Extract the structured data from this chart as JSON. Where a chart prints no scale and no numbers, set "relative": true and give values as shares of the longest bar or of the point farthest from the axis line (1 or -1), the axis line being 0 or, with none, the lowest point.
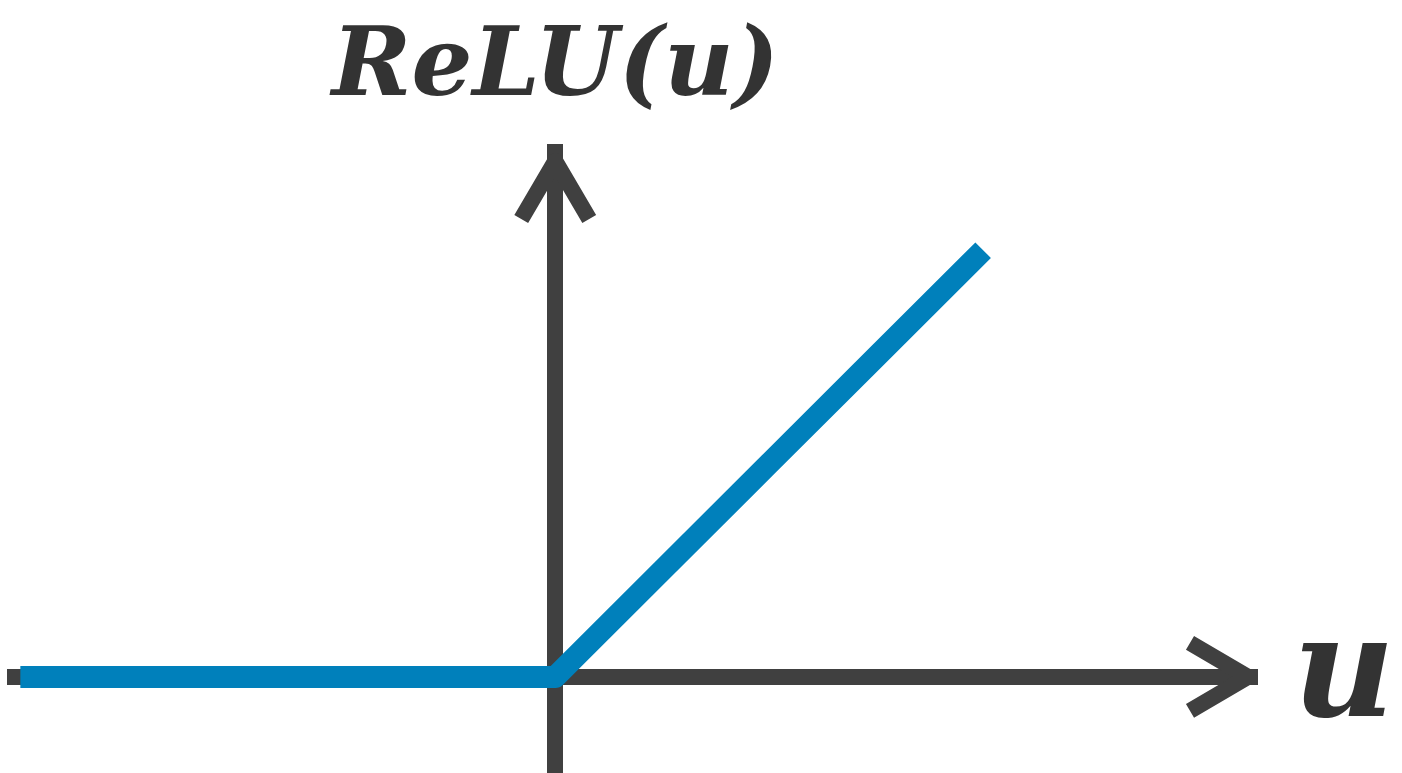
{
  "chart_data": {
    "type": "line",
    "xlabel": "u",
    "ylabel": "ReLU(u)",
    "categories": [
      null,
      null,
      null,
      null,
      null,
      null,
      null,
      null,
      null,
      null
    ],
    "values": [
      0,
      0,
      0,
      0,
      0,
      0,
      0.25,
      0.5,
      0.75,
      1
    ],
    "color": "#0080bb",
    "relative": true,
    "marker": "none",
    "line_style": "solid"
  }
}
